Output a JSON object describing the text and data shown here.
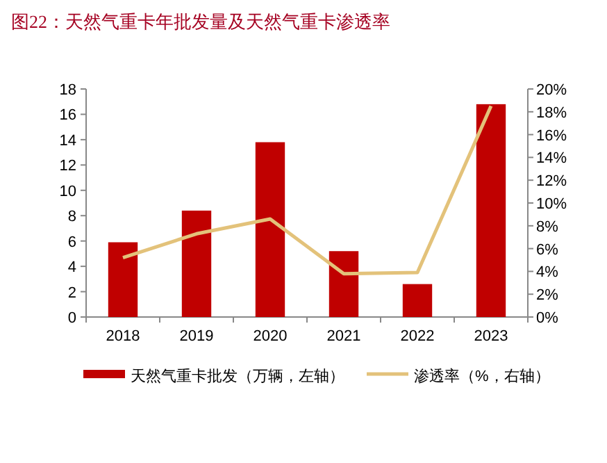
{
  "chart_data": {
    "type": "bar",
    "title": "图22：天然气重卡年批发量及天然气重卡渗透率",
    "categories": [
      "2018",
      "2019",
      "2020",
      "2021",
      "2022",
      "2023"
    ],
    "series": [
      {
        "name": "天然气重卡批发（万辆，左轴）",
        "color": "#c00000",
        "values": [
          5.9,
          8.4,
          13.8,
          5.2,
          2.6,
          16.8
        ]
      },
      {
        "name": "渗透率（%，右轴）",
        "type": "line",
        "axis": "y2",
        "color": "#e3c27a",
        "values": [
          5.2,
          7.3,
          8.6,
          3.8,
          3.9,
          18.5
        ]
      }
    ],
    "ylim": [
      0,
      18
    ],
    "yticks": [
      0,
      2,
      4,
      6,
      8,
      10,
      12,
      14,
      16,
      18
    ],
    "y2lim": [
      0,
      20
    ],
    "y2ticks": [
      {
        "value": 0,
        "label": "0%"
      },
      {
        "value": 2,
        "label": "2%"
      },
      {
        "value": 4,
        "label": "4%"
      },
      {
        "value": 6,
        "label": "6%"
      },
      {
        "value": 8,
        "label": "8%"
      },
      {
        "value": 10,
        "label": "10%"
      },
      {
        "value": 12,
        "label": "12%"
      },
      {
        "value": 14,
        "label": "14%"
      },
      {
        "value": 16,
        "label": "16%"
      },
      {
        "value": 18,
        "label": "18%"
      },
      {
        "value": 20,
        "label": "20%"
      }
    ],
    "legend": "bottom"
  }
}
